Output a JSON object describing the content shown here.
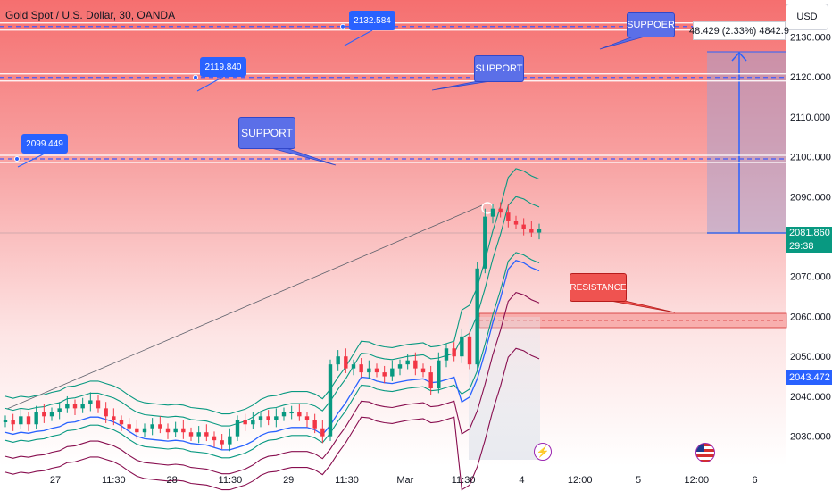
{
  "header": {
    "symbol_title": "Gold Spot / U.S. Dollar, 30, OANDA",
    "currency_button": "USD",
    "measure_readout": "48.429 (2.33%) 4842.9"
  },
  "price_axis": {
    "ticks": [
      "2130.000",
      "2120.000",
      "2110.000",
      "2100.000",
      "2090.000",
      "2070.000",
      "2060.000",
      "2050.000",
      "2040.000",
      "2030.000"
    ],
    "current_price": "2081.860",
    "countdown": "29:38",
    "blue_line_value": "2043.472"
  },
  "time_axis": {
    "labels": [
      "27",
      "11:30",
      "28",
      "11:30",
      "29",
      "11:30",
      "Mar",
      "11:30",
      "4",
      "12:00",
      "5",
      "12:00",
      "6"
    ]
  },
  "annotations": {
    "level_tags": [
      "2132.584",
      "2119.840",
      "2099.449"
    ],
    "support_bubbles": [
      "SUPPOER",
      "SUPPORT",
      "SUPPORT"
    ],
    "resistance_label": "RESISTANCE"
  },
  "icons": [
    "lightning-icon",
    "us-flag-icon"
  ],
  "colors": {
    "background_top": "#f56f6f",
    "background_bottom": "#ffffff",
    "support_line": "#3d5afe",
    "resistance_zone": "#ef5350",
    "upper_band": "#089981",
    "lower_band": "#880e4f",
    "mid_line": "#2962ff",
    "candle_up": "#089981",
    "candle_down": "#f23645",
    "tag_blue": "#2962ff",
    "bubble_blue": "#5b6fe8"
  },
  "chart_data": {
    "type": "candlestick",
    "symbol": "XAUUSD",
    "interval": "30",
    "ylim": [
      2023,
      2137
    ],
    "horizontal_lines": [
      2132.584,
      2119.84,
      2099.449
    ],
    "resistance_zone": [
      2057,
      2060
    ],
    "measure_range": [
      2081.86,
      2130.289
    ],
    "close_series": [
      2034,
      2033,
      2035,
      2033,
      2036,
      2035,
      2036,
      2037,
      2038,
      2037,
      2038,
      2039,
      2037,
      2035,
      2034,
      2033,
      2032,
      2031,
      2032,
      2033,
      2032,
      2031,
      2032,
      2031,
      2030,
      2031,
      2030,
      2029,
      2028,
      2030,
      2034,
      2033,
      2034,
      2035,
      2034,
      2035,
      2036,
      2036,
      2035,
      2034,
      2032,
      2030,
      2048,
      2050,
      2047,
      2048,
      2046,
      2047,
      2046,
      2045,
      2047,
      2048,
      2049,
      2047,
      2046,
      2042,
      2049,
      2052,
      2050,
      2055,
      2048,
      2072,
      2085,
      2087,
      2086,
      2084,
      2083,
      2082,
      2081,
      2082
    ]
  }
}
